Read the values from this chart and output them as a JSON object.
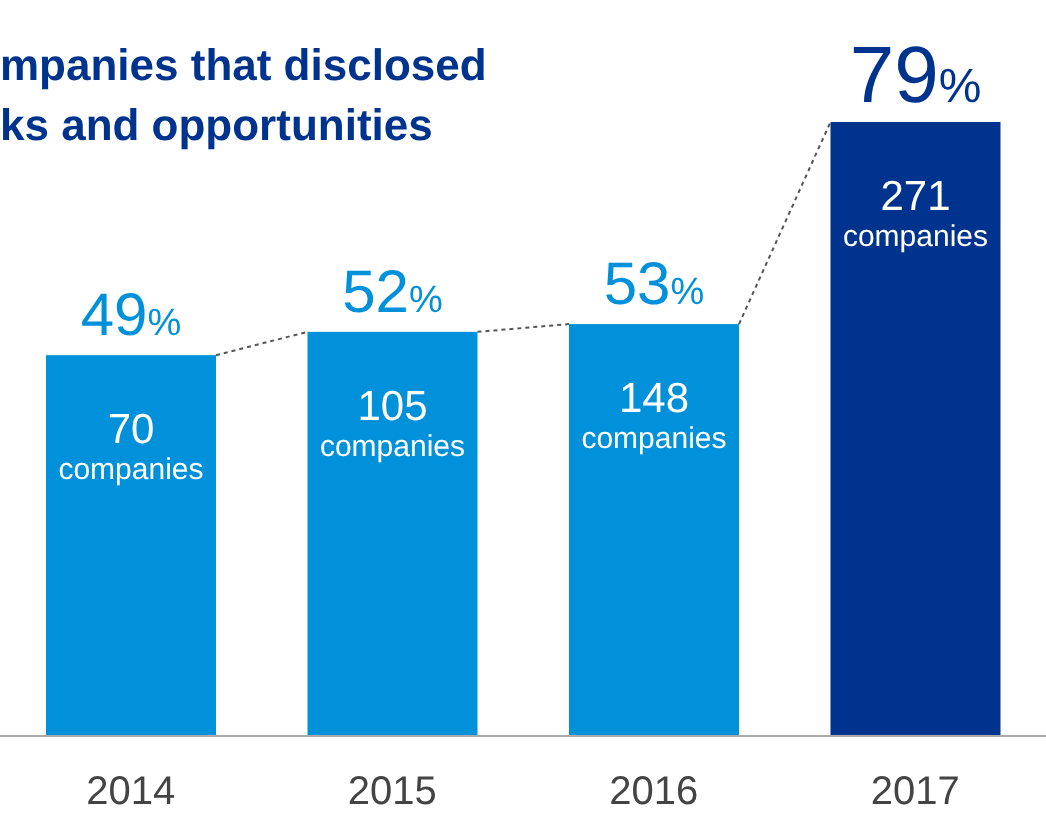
{
  "chart_data": {
    "type": "bar",
    "title": "mpanies that disclosed\nks and opportunities",
    "categories": [
      "2014",
      "2015",
      "2016",
      "2017"
    ],
    "values": [
      49,
      52,
      53,
      79
    ],
    "colors": [
      "#0091da",
      "#0091da",
      "#0091da",
      "#00338d"
    ],
    "value_labels": [
      "49%",
      "52%",
      "53%",
      "79%"
    ],
    "annotations": [
      {
        "text": "70\ncompanies",
        "x": "2014",
        "y": 49
      },
      {
        "text": "105\ncompanies",
        "x": "2015",
        "y": 52
      },
      {
        "text": "148\ncompanies",
        "x": "2016",
        "y": 53
      },
      {
        "text": "271\ncompanies",
        "x": "2017",
        "y": 79
      }
    ]
  }
}
